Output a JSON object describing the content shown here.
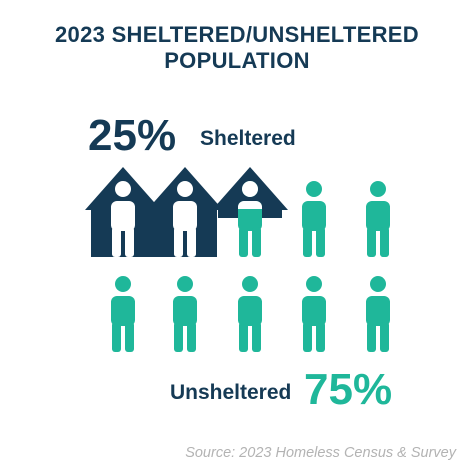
{
  "chart_data": {
    "type": "pictogram",
    "title_lines": [
      "2023 SHELTERED/UNSHELTERED",
      "POPULATION"
    ],
    "units_total": 10,
    "series": [
      {
        "name": "Sheltered",
        "percent": "25%",
        "value": 25,
        "units": 2.5,
        "color": "#153a55"
      },
      {
        "name": "Unsheltered",
        "percent": "75%",
        "value": 75,
        "units": 7.5,
        "color": "#1fb79a"
      }
    ],
    "source": "Source: 2023 Homeless Census & Survey"
  },
  "colors": {
    "dark": "#153a55",
    "teal": "#1fb79a",
    "white": "#ffffff",
    "source_text": "#b3b3b3"
  },
  "icons": [
    "house-icon",
    "person-icon"
  ]
}
